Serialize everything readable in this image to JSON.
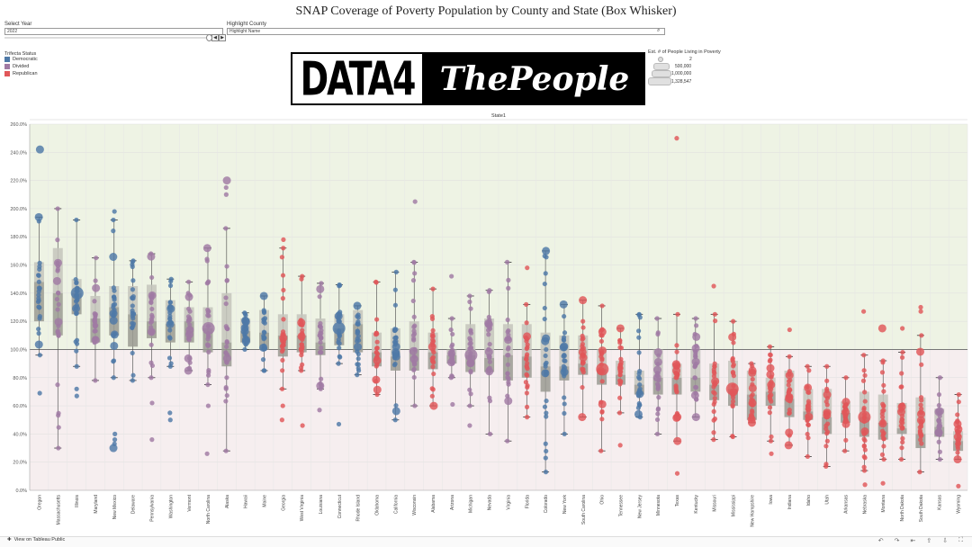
{
  "title": "SNAP Coverage of Poverty Population by County and State (Box Whisker)",
  "controls": {
    "year_label": "Select Year",
    "year_value": "2022",
    "county_label": "Highlight County",
    "county_placeholder": "Highlight Name"
  },
  "trifecta_legend": {
    "title": "Trifecta Status",
    "items": [
      {
        "label": "Democratic",
        "color": "#4e79a7"
      },
      {
        "label": "Divided",
        "color": "#a07aa3"
      },
      {
        "label": "Republican",
        "color": "#e15759"
      }
    ]
  },
  "logo": {
    "left": "DATA4",
    "right": "ThePeople"
  },
  "size_legend": {
    "title": "Est. # of People Living in Poverty",
    "items": [
      "2",
      "500,000",
      "1,000,000",
      "1,328,547"
    ]
  },
  "footer": {
    "link": "View on Tableau Public"
  },
  "chart_data": {
    "type": "box-whisker",
    "header": "State1",
    "ylim": [
      0,
      260
    ],
    "yticks": [
      "0.0%",
      "20.0%",
      "40.0%",
      "60.0%",
      "80.0%",
      "100.0%",
      "120.0%",
      "140.0%",
      "160.0%",
      "180.0%",
      "200.0%",
      "220.0%",
      "240.0%",
      "260.0%"
    ],
    "reference_line": 100,
    "states": [
      {
        "name": "Oregon",
        "status": "Democratic",
        "min": 96,
        "q1": 120,
        "median": 148,
        "q3": 162,
        "max": 194,
        "outliers": [
          242,
          69
        ]
      },
      {
        "name": "Massachusetts",
        "status": "Divided",
        "min": 30,
        "q1": 110,
        "median": 140,
        "q3": 172,
        "max": 200,
        "outliers": []
      },
      {
        "name": "Illinois",
        "status": "Democratic",
        "min": 88,
        "q1": 125,
        "median": 140,
        "q3": 150,
        "max": 192,
        "outliers": [
          72,
          67
        ]
      },
      {
        "name": "Maryland",
        "status": "Divided",
        "min": 78,
        "q1": 105,
        "median": 122,
        "q3": 138,
        "max": 165,
        "outliers": []
      },
      {
        "name": "New Mexico",
        "status": "Democratic",
        "min": 80,
        "q1": 110,
        "median": 130,
        "q3": 145,
        "max": 192,
        "outliers": [
          198,
          40,
          36,
          33,
          30
        ]
      },
      {
        "name": "Delaware",
        "status": "Democratic",
        "min": 78,
        "q1": 102,
        "median": 125,
        "q3": 145,
        "max": 163,
        "outliers": []
      },
      {
        "name": "Pennsylvania",
        "status": "Divided",
        "min": 80,
        "q1": 108,
        "median": 120,
        "q3": 146,
        "max": 168,
        "outliers": [
          62,
          36
        ]
      },
      {
        "name": "Washington",
        "status": "Democratic",
        "min": 88,
        "q1": 105,
        "median": 118,
        "q3": 135,
        "max": 150,
        "outliers": [
          55,
          50
        ]
      },
      {
        "name": "Vermont",
        "status": "Divided",
        "min": 85,
        "q1": 105,
        "median": 120,
        "q3": 130,
        "max": 148,
        "outliers": []
      },
      {
        "name": "North Carolina",
        "status": "Divided",
        "min": 75,
        "q1": 98,
        "median": 115,
        "q3": 130,
        "max": 172,
        "outliers": [
          60,
          26
        ]
      },
      {
        "name": "Alaska",
        "status": "Divided",
        "min": 28,
        "q1": 88,
        "median": 105,
        "q3": 140,
        "max": 186,
        "outliers": [
          220,
          215,
          210
        ]
      },
      {
        "name": "Hawaii",
        "status": "Democratic",
        "min": 100,
        "q1": 105,
        "median": 113,
        "q3": 122,
        "max": 126,
        "outliers": []
      },
      {
        "name": "Maine",
        "status": "Democratic",
        "min": 85,
        "q1": 100,
        "median": 112,
        "q3": 128,
        "max": 138,
        "outliers": []
      },
      {
        "name": "Georgia",
        "status": "Republican",
        "min": 72,
        "q1": 95,
        "median": 110,
        "q3": 125,
        "max": 172,
        "outliers": [
          178,
          60,
          50
        ]
      },
      {
        "name": "West Virginia",
        "status": "Republican",
        "min": 85,
        "q1": 98,
        "median": 110,
        "q3": 125,
        "max": 152,
        "outliers": [
          46
        ]
      },
      {
        "name": "Louisiana",
        "status": "Divided",
        "min": 72,
        "q1": 96,
        "median": 105,
        "q3": 122,
        "max": 147,
        "outliers": [
          57
        ]
      },
      {
        "name": "Connecticut",
        "status": "Democratic",
        "min": 90,
        "q1": 103,
        "median": 115,
        "q3": 125,
        "max": 146,
        "outliers": [
          47
        ]
      },
      {
        "name": "Rhode Island",
        "status": "Democratic",
        "min": 82,
        "q1": 98,
        "median": 118,
        "q3": 128,
        "max": 131,
        "outliers": []
      },
      {
        "name": "Oklahoma",
        "status": "Republican",
        "min": 68,
        "q1": 88,
        "median": 98,
        "q3": 112,
        "max": 148,
        "outliers": []
      },
      {
        "name": "California",
        "status": "Democratic",
        "min": 50,
        "q1": 85,
        "median": 95,
        "q3": 115,
        "max": 155,
        "outliers": []
      },
      {
        "name": "Wisconsin",
        "status": "Divided",
        "min": 60,
        "q1": 85,
        "median": 100,
        "q3": 120,
        "max": 162,
        "outliers": [
          205
        ]
      },
      {
        "name": "Alabama",
        "status": "Republican",
        "min": 60,
        "q1": 86,
        "median": 98,
        "q3": 112,
        "max": 143,
        "outliers": []
      },
      {
        "name": "Arizona",
        "status": "Divided",
        "min": 80,
        "q1": 90,
        "median": 96,
        "q3": 100,
        "max": 122,
        "outliers": [
          152,
          61
        ]
      },
      {
        "name": "Michigan",
        "status": "Divided",
        "min": 60,
        "q1": 84,
        "median": 96,
        "q3": 118,
        "max": 138,
        "outliers": [
          46
        ]
      },
      {
        "name": "Nevada",
        "status": "Divided",
        "min": 40,
        "q1": 84,
        "median": 94,
        "q3": 122,
        "max": 142,
        "outliers": []
      },
      {
        "name": "Virginia",
        "status": "Divided",
        "min": 35,
        "q1": 78,
        "median": 96,
        "q3": 118,
        "max": 162,
        "outliers": []
      },
      {
        "name": "Florida",
        "status": "Republican",
        "min": 52,
        "q1": 80,
        "median": 95,
        "q3": 118,
        "max": 132,
        "outliers": [
          158
        ]
      },
      {
        "name": "Colorado",
        "status": "Democratic",
        "min": 13,
        "q1": 70,
        "median": 88,
        "q3": 112,
        "max": 170,
        "outliers": []
      },
      {
        "name": "New York",
        "status": "Democratic",
        "min": 40,
        "q1": 78,
        "median": 88,
        "q3": 110,
        "max": 132,
        "outliers": []
      },
      {
        "name": "South Carolina",
        "status": "Republican",
        "min": 52,
        "q1": 82,
        "median": 90,
        "q3": 110,
        "max": 135,
        "outliers": []
      },
      {
        "name": "Ohio",
        "status": "Republican",
        "min": 28,
        "q1": 75,
        "median": 86,
        "q3": 100,
        "max": 131,
        "outliers": []
      },
      {
        "name": "Tennessee",
        "status": "Republican",
        "min": 55,
        "q1": 75,
        "median": 82,
        "q3": 92,
        "max": 115,
        "outliers": [
          32
        ]
      },
      {
        "name": "New Jersey",
        "status": "Democratic",
        "min": 52,
        "q1": 68,
        "median": 75,
        "q3": 85,
        "max": 125,
        "outliers": []
      },
      {
        "name": "Minnesota",
        "status": "Divided",
        "min": 40,
        "q1": 68,
        "median": 80,
        "q3": 100,
        "max": 122,
        "outliers": []
      },
      {
        "name": "Texas",
        "status": "Republican",
        "min": 35,
        "q1": 68,
        "median": 80,
        "q3": 90,
        "max": 125,
        "outliers": [
          250,
          12
        ]
      },
      {
        "name": "Kentucky",
        "status": "Divided",
        "min": 52,
        "q1": 70,
        "median": 80,
        "q3": 100,
        "max": 122,
        "outliers": []
      },
      {
        "name": "Missouri",
        "status": "Republican",
        "min": 36,
        "q1": 64,
        "median": 75,
        "q3": 90,
        "max": 125,
        "outliers": [
          145
        ]
      },
      {
        "name": "Mississippi",
        "status": "Republican",
        "min": 38,
        "q1": 60,
        "median": 72,
        "q3": 92,
        "max": 120,
        "outliers": []
      },
      {
        "name": "New Hampshire",
        "status": "Republican",
        "min": 48,
        "q1": 50,
        "median": 68,
        "q3": 85,
        "max": 90,
        "outliers": []
      },
      {
        "name": "Iowa",
        "status": "Republican",
        "min": 35,
        "q1": 60,
        "median": 70,
        "q3": 80,
        "max": 102,
        "outliers": [
          26
        ]
      },
      {
        "name": "Indiana",
        "status": "Republican",
        "min": 32,
        "q1": 52,
        "median": 65,
        "q3": 85,
        "max": 95,
        "outliers": [
          114
        ]
      },
      {
        "name": "Idaho",
        "status": "Republican",
        "min": 24,
        "q1": 50,
        "median": 56,
        "q3": 72,
        "max": 88,
        "outliers": []
      },
      {
        "name": "Utah",
        "status": "Republican",
        "min": 17,
        "q1": 40,
        "median": 52,
        "q3": 72,
        "max": 88,
        "outliers": []
      },
      {
        "name": "Arkansas",
        "status": "Republican",
        "min": 28,
        "q1": 48,
        "median": 55,
        "q3": 63,
        "max": 80,
        "outliers": []
      },
      {
        "name": "Nebraska",
        "status": "Republican",
        "min": 14,
        "q1": 38,
        "median": 52,
        "q3": 70,
        "max": 96,
        "outliers": [
          127,
          4
        ]
      },
      {
        "name": "Montana",
        "status": "Republican",
        "min": 22,
        "q1": 36,
        "median": 48,
        "q3": 68,
        "max": 92,
        "outliers": [
          115,
          5
        ]
      },
      {
        "name": "North Dakota",
        "status": "Republican",
        "min": 22,
        "q1": 40,
        "median": 44,
        "q3": 62,
        "max": 98,
        "outliers": [
          115
        ]
      },
      {
        "name": "South Dakota",
        "status": "Republican",
        "min": 13,
        "q1": 30,
        "median": 40,
        "q3": 66,
        "max": 110,
        "outliers": [
          130,
          127
        ]
      },
      {
        "name": "Kansas",
        "status": "Divided",
        "min": 22,
        "q1": 38,
        "median": 45,
        "q3": 58,
        "max": 80,
        "outliers": []
      },
      {
        "name": "Wyoming",
        "status": "Republican",
        "min": 22,
        "q1": 28,
        "median": 35,
        "q3": 42,
        "max": 68,
        "outliers": [
          3
        ]
      }
    ]
  }
}
